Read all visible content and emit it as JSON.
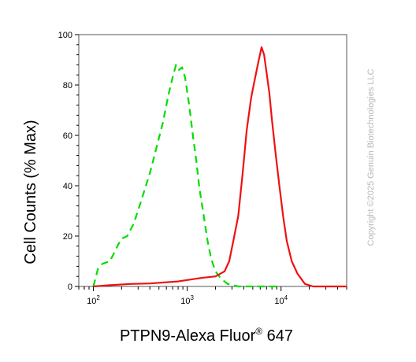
{
  "chart_data": {
    "type": "line",
    "xlabel": "PTPN9-Alexa Fluor",
    "xlabel_superscript": "®",
    "xlabel_suffix": " 647",
    "ylabel": "Cell Counts (% Max)",
    "xscale": "log",
    "xlim": [
      70,
      50000
    ],
    "ylim": [
      0,
      100
    ],
    "y_ticks": [
      0,
      20,
      40,
      60,
      80,
      100
    ],
    "x_ticks": [
      {
        "value": 100,
        "base": "10",
        "exp": "2"
      },
      {
        "value": 1000,
        "base": "10",
        "exp": "3"
      },
      {
        "value": 10000,
        "base": "10",
        "exp": "4"
      }
    ],
    "grid": false,
    "legend": "none",
    "watermark": "Copyright ©2025 Genuin Biotechnologies LLC",
    "series": [
      {
        "color": "#00dd00",
        "style": "dashed",
        "points": [
          [
            100,
            0
          ],
          [
            105,
            3
          ],
          [
            112,
            7
          ],
          [
            125,
            9
          ],
          [
            150,
            10
          ],
          [
            165,
            13
          ],
          [
            180,
            16
          ],
          [
            200,
            19
          ],
          [
            230,
            20
          ],
          [
            270,
            25
          ],
          [
            330,
            35
          ],
          [
            400,
            45
          ],
          [
            470,
            55
          ],
          [
            550,
            65
          ],
          [
            630,
            76
          ],
          [
            700,
            83
          ],
          [
            760,
            88
          ],
          [
            820,
            86
          ],
          [
            880,
            87
          ],
          [
            950,
            83
          ],
          [
            1050,
            72
          ],
          [
            1150,
            60
          ],
          [
            1250,
            50
          ],
          [
            1350,
            39
          ],
          [
            1500,
            28
          ],
          [
            1650,
            18
          ],
          [
            1800,
            11
          ],
          [
            2000,
            6
          ],
          [
            2300,
            3
          ],
          [
            2700,
            1
          ],
          [
            3500,
            0
          ],
          [
            10000,
            0
          ]
        ]
      },
      {
        "color": "#ee1111",
        "style": "solid",
        "points": [
          [
            100,
            0
          ],
          [
            150,
            0.5
          ],
          [
            250,
            1
          ],
          [
            400,
            1.2
          ],
          [
            800,
            2
          ],
          [
            1200,
            3
          ],
          [
            1500,
            3.5
          ],
          [
            2000,
            4
          ],
          [
            2500,
            6
          ],
          [
            2800,
            10
          ],
          [
            3100,
            18
          ],
          [
            3500,
            28
          ],
          [
            3900,
            45
          ],
          [
            4300,
            62
          ],
          [
            4800,
            75
          ],
          [
            5300,
            83
          ],
          [
            5800,
            90
          ],
          [
            6200,
            95
          ],
          [
            6600,
            92
          ],
          [
            7000,
            85
          ],
          [
            7500,
            77
          ],
          [
            8000,
            66
          ],
          [
            8800,
            52
          ],
          [
            9600,
            40
          ],
          [
            10500,
            28
          ],
          [
            11500,
            18
          ],
          [
            13000,
            10
          ],
          [
            15000,
            5
          ],
          [
            18000,
            1
          ],
          [
            22000,
            0
          ],
          [
            50000,
            0
          ]
        ]
      }
    ]
  }
}
